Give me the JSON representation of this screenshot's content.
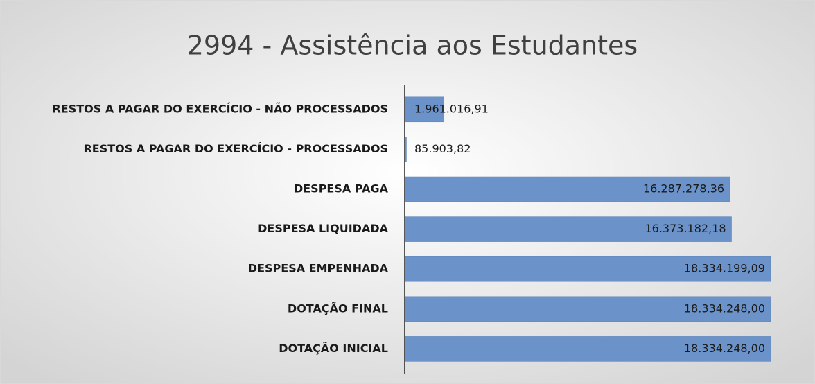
{
  "chart_data": {
    "type": "bar",
    "orientation": "horizontal",
    "title": "2994 - Assistência aos Estudantes",
    "categories": [
      "RESTOS A PAGAR DO EXERCÍCIO - NÃO PROCESSADOS",
      "RESTOS A PAGAR DO EXERCÍCIO - PROCESSADOS",
      "DESPESA PAGA",
      "DESPESA LIQUIDADA",
      "DESPESA EMPENHADA",
      "DOTAÇÃO FINAL",
      "DOTAÇÃO INICIAL"
    ],
    "values": [
      1961016.91,
      85903.82,
      16287278.36,
      16373182.18,
      18334199.09,
      18334248.0,
      18334248.0
    ],
    "value_labels": [
      "1.961.016,91",
      "85.903,82",
      "16.287.278,36",
      "16.373.182,18",
      "18.334.199,09",
      "18.334.248,00",
      "18.334.248,00"
    ],
    "color": "#6b93c9"
  }
}
